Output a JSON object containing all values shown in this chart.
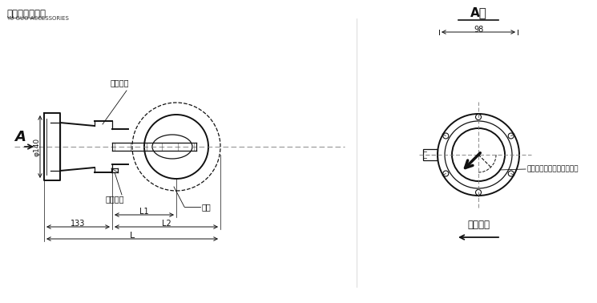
{
  "bg_color": "#ffffff",
  "title_cn": "玉国变压器配件",
  "title_en": "YU GUO ACCESSORIES",
  "view_label": "A向",
  "dim_98": "98",
  "dim_133": "133",
  "dim_L1": "L1",
  "dim_L2": "L2",
  "dim_L": "L",
  "dim_phi140": "φ140",
  "label_flange": "安装法兰",
  "label_pipe": "联管",
  "label_seal": "密封垫圈",
  "label_vane": "动板起始位置（无流量时）",
  "label_oil": "油流方向",
  "label_A": "A"
}
